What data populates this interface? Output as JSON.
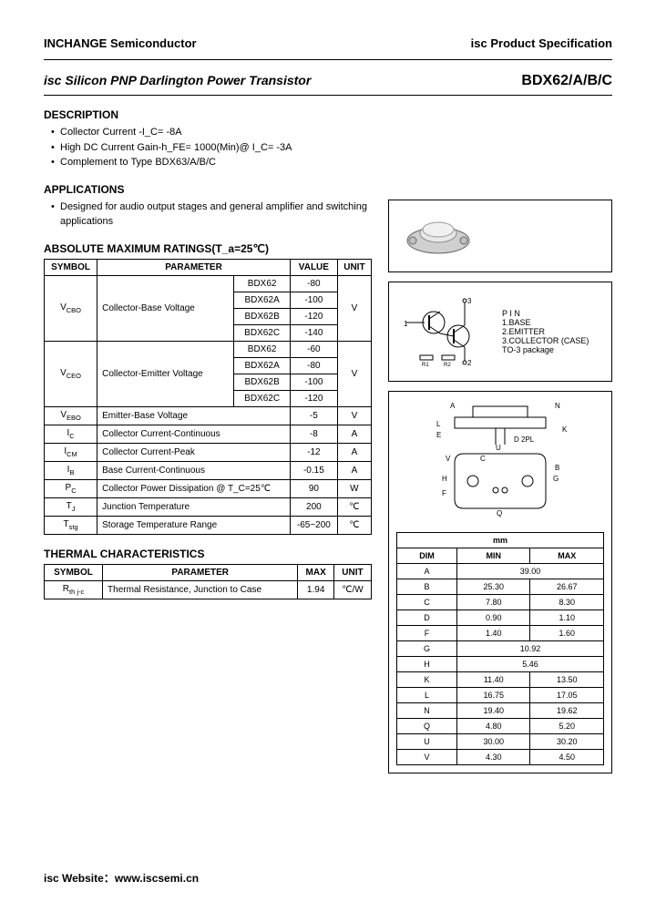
{
  "header": {
    "left": "INCHANGE Semiconductor",
    "right": "isc Product Specification"
  },
  "title": {
    "product": "isc Silicon PNP Darlington Power Transistor",
    "part": "BDX62/A/B/C"
  },
  "description": {
    "heading": "DESCRIPTION",
    "items": [
      "Collector Current -I_C= -8A",
      "High DC Current Gain-h_FE= 1000(Min)@ I_C= -3A",
      "Complement to Type BDX63/A/B/C"
    ]
  },
  "applications": {
    "heading": "APPLICATIONS",
    "items": [
      "Designed for audio output stages and general amplifier and switching applications"
    ]
  },
  "ratings": {
    "heading": "ABSOLUTE MAXIMUM RATINGS(T_a=25℃)",
    "cols": [
      "SYMBOL",
      "PARAMETER",
      "VALUE",
      "UNIT"
    ],
    "vcbo": {
      "sym": "V_CBO",
      "param": "Collector-Base Voltage",
      "rows": [
        [
          "BDX62",
          "-80"
        ],
        [
          "BDX62A",
          "-100"
        ],
        [
          "BDX62B",
          "-120"
        ],
        [
          "BDX62C",
          "-140"
        ]
      ],
      "unit": "V"
    },
    "vceo": {
      "sym": "V_CEO",
      "param": "Collector-Emitter Voltage",
      "rows": [
        [
          "BDX62",
          "-60"
        ],
        [
          "BDX62A",
          "-80"
        ],
        [
          "BDX62B",
          "-100"
        ],
        [
          "BDX62C",
          "-120"
        ]
      ],
      "unit": "V"
    },
    "simple": [
      {
        "sym": "V_EBO",
        "param": "Emitter-Base Voltage",
        "val": "-5",
        "unit": "V"
      },
      {
        "sym": "I_C",
        "param": "Collector Current-Continuous",
        "val": "-8",
        "unit": "A"
      },
      {
        "sym": "I_CM",
        "param": "Collector Current-Peak",
        "val": "-12",
        "unit": "A"
      },
      {
        "sym": "I_B",
        "param": "Base Current-Continuous",
        "val": "-0.15",
        "unit": "A"
      },
      {
        "sym": "P_C",
        "param": "Collector Power Dissipation @ T_C=25℃",
        "val": "90",
        "unit": "W"
      },
      {
        "sym": "T_J",
        "param": "Junction Temperature",
        "val": "200",
        "unit": "℃"
      },
      {
        "sym": "T_stg",
        "param": "Storage Temperature Range",
        "val": "-65~200",
        "unit": "℃"
      }
    ]
  },
  "thermal": {
    "heading": "THERMAL CHARACTERISTICS",
    "cols": [
      "SYMBOL",
      "PARAMETER",
      "MAX",
      "UNIT"
    ],
    "rows": [
      {
        "sym": "R_th j-c",
        "param": "Thermal Resistance, Junction to Case",
        "max": "1.94",
        "unit": "℃/W"
      }
    ]
  },
  "pinout": {
    "pins": [
      "1.BASE",
      "2.EMITTER",
      "3.COLLECTOR (CASE)"
    ],
    "pkg": "TO-3 package",
    "label": "P I N"
  },
  "dims": {
    "header": [
      "DIM",
      "MIN",
      "MAX"
    ],
    "unit_label": "mm",
    "rows": [
      [
        "A",
        "39.00",
        ""
      ],
      [
        "B",
        "25.30",
        "26.67"
      ],
      [
        "C",
        "7.80",
        "8.30"
      ],
      [
        "D",
        "0.90",
        "1.10"
      ],
      [
        "F",
        "1.40",
        "1.60"
      ],
      [
        "G",
        "10.92",
        ""
      ],
      [
        "H",
        "5.46",
        ""
      ],
      [
        "K",
        "11.40",
        "13.50"
      ],
      [
        "L",
        "16.75",
        "17.05"
      ],
      [
        "N",
        "19.40",
        "19.62"
      ],
      [
        "Q",
        "4.80",
        "5.20"
      ],
      [
        "U",
        "30.00",
        "30.20"
      ],
      [
        "V",
        "4.30",
        "4.50"
      ]
    ]
  },
  "footer": {
    "label": "isc Website：",
    "url": "www.iscsemi.cn"
  },
  "style": {
    "border": "#000000",
    "bg": "#ffffff",
    "font_body": 11,
    "font_table": 10
  }
}
